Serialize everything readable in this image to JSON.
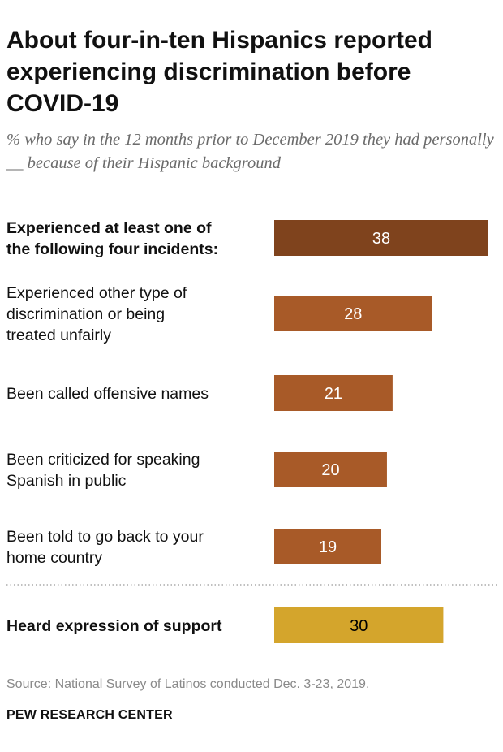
{
  "title": "About four-in-ten Hispanics reported experiencing discrimination before COVID-19",
  "subtitle": "% who say in the 12 months prior to December 2019 they had personally __ because of their Hispanic background",
  "source": "Source: National Survey of Latinos conducted Dec. 3-23, 2019.",
  "credit": "PEW RESEARCH CENTER",
  "colors": {
    "dark_brown": "#7f431d",
    "brown": "#a85a28",
    "gold": "#d4a52c",
    "separator": "#9a9a9a"
  },
  "chart_data": {
    "type": "bar",
    "orientation": "horizontal",
    "categories": [
      "Experienced at least one of the following four incidents:",
      "Experienced other type of discrimination or being treated unfairly",
      "Been called offensive names",
      "Been criticized  for speaking Spanish in public",
      "Been told to go back to your home country",
      "Heard expression of support"
    ],
    "values": [
      38,
      28,
      21,
      20,
      19,
      30
    ],
    "xlim": [
      0,
      38
    ],
    "grid": false,
    "data_labels": true
  }
}
